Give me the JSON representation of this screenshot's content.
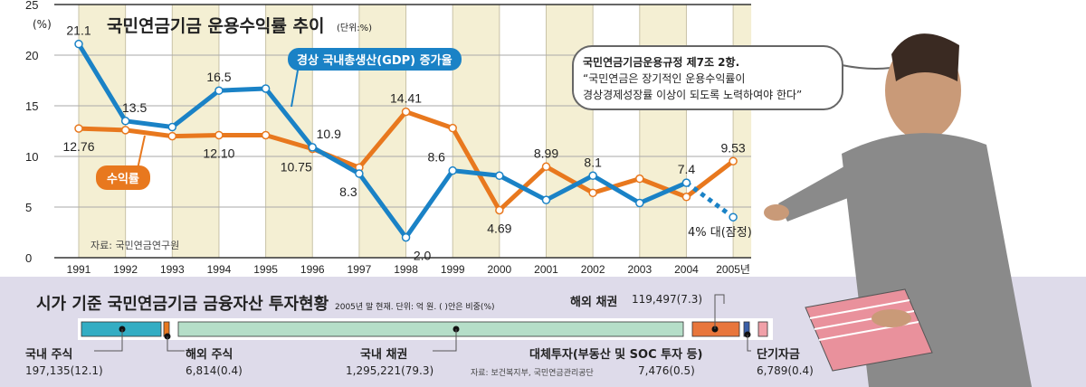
{
  "chart_data": {
    "type": "line",
    "title": "국민연금기금 운용수익률 추이",
    "unit": "(단위:%)",
    "ylabel": "(%)",
    "ylim": [
      0,
      25
    ],
    "yticks": [
      0,
      5,
      10,
      15,
      20,
      25
    ],
    "x": [
      "1991",
      "1992",
      "1993",
      "1994",
      "1995",
      "1996",
      "1997",
      "1998",
      "1999",
      "2000",
      "2001",
      "2002",
      "2003",
      "2004",
      "2005년"
    ],
    "series": [
      {
        "name": "수익률",
        "color": "#e8781e",
        "values": [
          12.76,
          12.6,
          12.0,
          12.1,
          12.1,
          10.75,
          8.9,
          14.41,
          12.8,
          4.69,
          8.99,
          6.4,
          7.8,
          6.0,
          9.53
        ],
        "labels": {
          "0": "12.76",
          "3": "12.10",
          "5": "10.75",
          "7": "14.41",
          "9": "4.69",
          "10": "8.99",
          "14": "9.53"
        }
      },
      {
        "name": "경상 국내총생산(GDP) 증가율",
        "color": "#1a82c6",
        "values": [
          21.1,
          13.5,
          12.9,
          16.5,
          16.7,
          10.9,
          8.3,
          2.0,
          8.6,
          8.1,
          5.7,
          8.1,
          5.4,
          7.4,
          4.0
        ],
        "labels": {
          "0": "21.1",
          "1": "13.5",
          "3": "16.5",
          "5": "10.9",
          "6": "8.3",
          "7": "2.0",
          "8": "8.6",
          "11": "8.1",
          "13": "7.4"
        },
        "projected_label": "4% 대(잠정)"
      }
    ],
    "source": "자료: 국민연금연구원"
  },
  "quote": {
    "title": "국민연금기금운용규정 제7조 2항.",
    "line1": "“국민연금은 장기적인 운용수익률이",
    "line2": "경상경제성장률 이상이 되도록 노력하여야 한다”"
  },
  "assets": {
    "title": "시가 기준 국민연금기금 금융자산 투자현황",
    "note": "2005년 말 현재. 단위: 억 원. (  )안은 비중(%)",
    "source": "자료: 보건복지부, 국민연금관리공단",
    "items": [
      {
        "name": "국내 주식",
        "value": "197,135(12.1)",
        "share": 12.1,
        "color": "#33adc3"
      },
      {
        "name": "해외 주식",
        "value": "6,814(0.4)",
        "share": 0.4,
        "color": "#e8781e"
      },
      {
        "name": "국내 채권",
        "value": "1,295,221(79.3)",
        "share": 79.3,
        "color": "#b5dec8"
      },
      {
        "name": "해외 채권",
        "value": "119,497(7.3)",
        "share": 7.3,
        "color": "#e8763c"
      },
      {
        "name": "대체투자(부동산 및 SOC 투자 등)",
        "value": "7,476(0.5)",
        "share": 0.5,
        "color": "#3a5fa8"
      },
      {
        "name": "단기자금",
        "value": "6,789(0.4)",
        "share": 0.4,
        "color": "#f0a0a8"
      }
    ]
  }
}
